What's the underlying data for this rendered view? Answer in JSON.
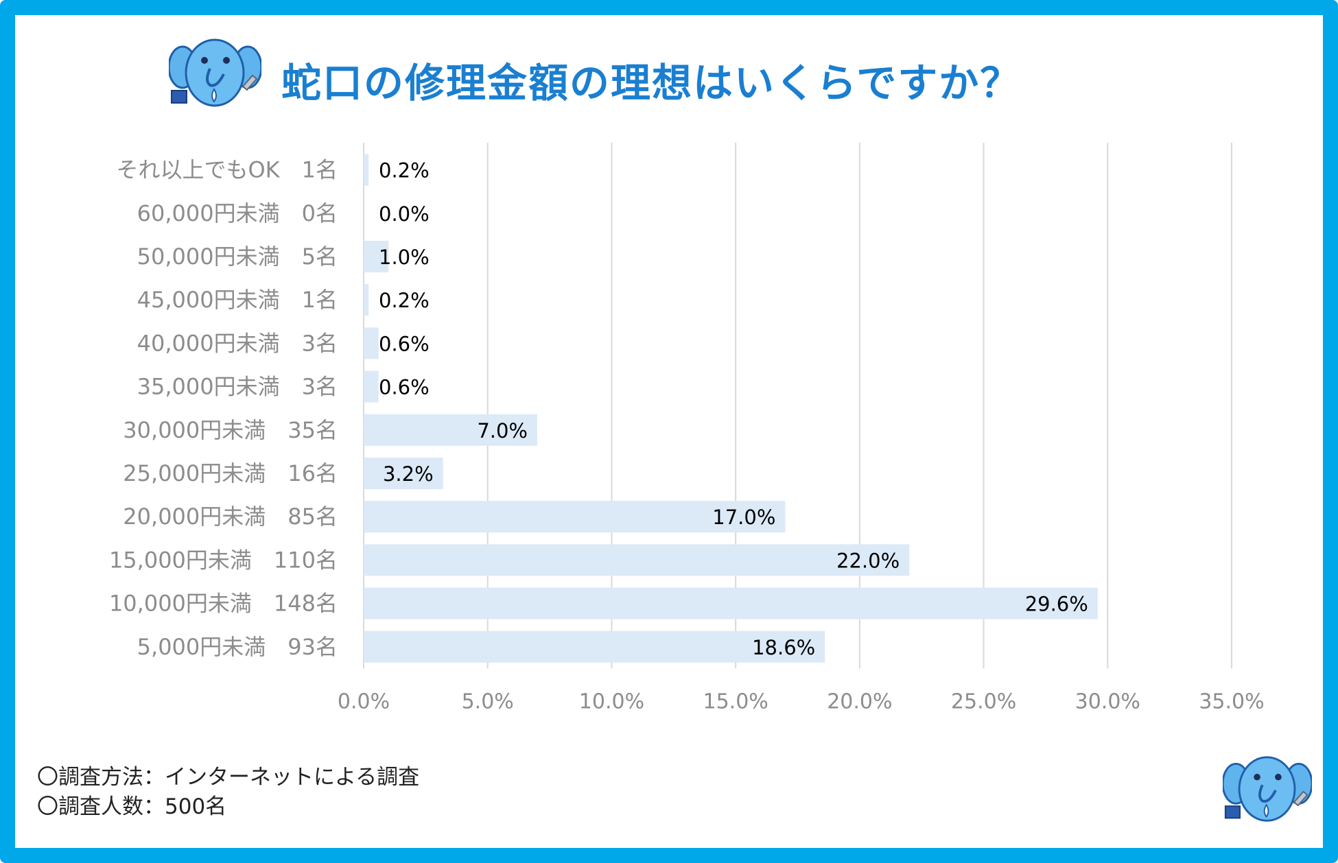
{
  "header": {
    "title": "蛇口の修理金額の理想はいくらですか？"
  },
  "chart_data": {
    "type": "bar",
    "orientation": "horizontal",
    "title": "蛇口の修理金額の理想はいくらですか？",
    "categories": [
      "それ以上でもOK　1名",
      "60,000円未満　0名",
      "50,000円未満　5名",
      "45,000円未満　1名",
      "40,000円未満　3名",
      "35,000円未満　3名",
      "30,000円未満　35名",
      "25,000円未満　16名",
      "20,000円未満　85名",
      "15,000円未満　110名",
      "10,000円未満　148名",
      "5,000円未満　93名"
    ],
    "values": [
      0.2,
      0.0,
      1.0,
      0.2,
      0.6,
      0.6,
      7.0,
      3.2,
      17.0,
      22.0,
      29.6,
      18.6
    ],
    "value_labels": [
      "0.2%",
      "0.0%",
      "1.0%",
      "0.2%",
      "0.6%",
      "0.6%",
      "7.0%",
      "3.2%",
      "17.0%",
      "22.0%",
      "29.6%",
      "18.6%"
    ],
    "xlim": [
      0,
      35
    ],
    "xticks": [
      "0.0%",
      "5.0%",
      "10.0%",
      "15.0%",
      "20.0%",
      "25.0%",
      "30.0%",
      "35.0%"
    ],
    "grid": true,
    "bar_color": "#dce9f7",
    "grid_color": "#d9d9d9"
  },
  "notes": {
    "method": "〇調査方法：インターネットによる調査",
    "respondents": "〇調査人数：500名"
  },
  "mascot": {
    "icon": "elephant-mascot-icon",
    "body_color": "#5fb4ee",
    "outline_color": "#1f5fa8"
  }
}
